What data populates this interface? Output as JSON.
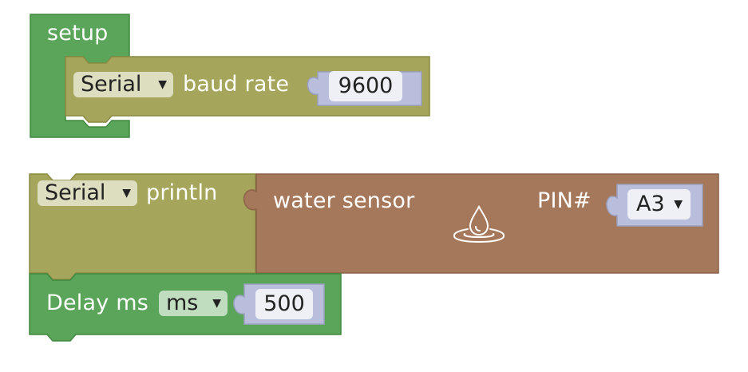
{
  "colors": {
    "control_block": "#5ba55b",
    "control_block_border": "#3f8a3f",
    "serial_block": "#a5a55b",
    "serial_block_border": "#8a8a43",
    "sensor_block": "#a5785b",
    "sensor_block_border": "#8c6248",
    "value_block": "#b8bedb",
    "value_block_border": "#9aa0c0"
  },
  "setup_block": {
    "label": "setup",
    "baud_rate_statement": {
      "serial_dropdown": "Serial",
      "label": "baud rate",
      "value": "9600"
    }
  },
  "println_block": {
    "serial_dropdown": "Serial",
    "label": "println",
    "water_sensor": {
      "label": "water sensor",
      "icon": "water-drop-icon",
      "pin_label": "PIN#",
      "pin_value": "A3"
    }
  },
  "delay_block": {
    "label": "Delay ms",
    "unit_dropdown": "ms",
    "value": "500"
  }
}
